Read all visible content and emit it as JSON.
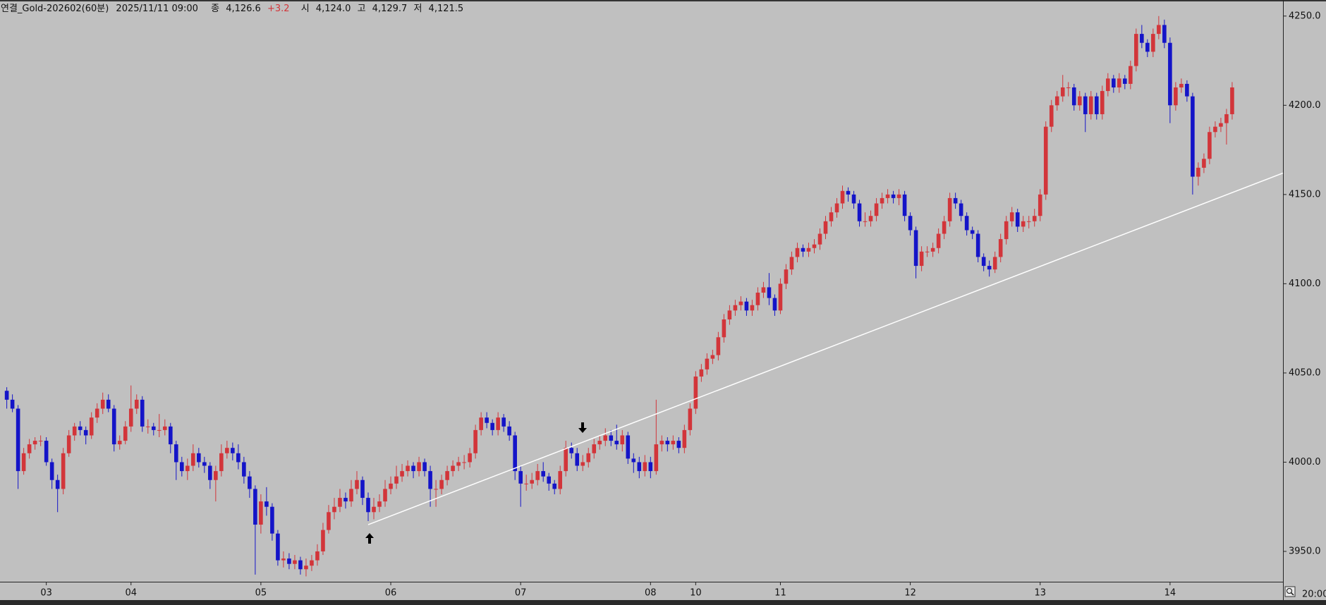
{
  "header": {
    "title": "연결_Gold-202602(60분)",
    "datetime": "2025/11/11 09:00",
    "close_label": "종",
    "close": "4,126.6",
    "change": "+3.2",
    "open_label": "시",
    "open": "4,124.0",
    "high_label": "고",
    "high": "4,129.7",
    "low_label": "저",
    "low": "4,121.5"
  },
  "chart_data": {
    "type": "candlestick",
    "up_color": "#d2353a",
    "down_color": "#1414c8",
    "ylim": [
      3933,
      4259
    ],
    "yticks": [
      {
        "value": 3950,
        "label": "3950.0"
      },
      {
        "value": 4000,
        "label": "4000.0"
      },
      {
        "value": 4050,
        "label": "4050.0"
      },
      {
        "value": 4100,
        "label": "4100.0"
      },
      {
        "value": 4150,
        "label": "4150.0"
      },
      {
        "value": 4200,
        "label": "4200.0"
      },
      {
        "value": 4250,
        "label": "4250.0"
      }
    ],
    "xlim": [
      -1.2,
      226
    ],
    "xticks": [
      {
        "value": 7,
        "label": "03"
      },
      {
        "value": 22,
        "label": "04"
      },
      {
        "value": 45,
        "label": "05"
      },
      {
        "value": 68,
        "label": "06"
      },
      {
        "value": 91,
        "label": "07"
      },
      {
        "value": 114,
        "label": "08"
      },
      {
        "value": 122,
        "label": "10"
      },
      {
        "value": 137,
        "label": "11"
      },
      {
        "value": 160,
        "label": "12"
      },
      {
        "value": 183,
        "label": "13"
      },
      {
        "value": 206,
        "label": "14"
      }
    ],
    "time_label": "20:00",
    "trendline": {
      "color": "#ffffff",
      "start": [
        64,
        3965
      ],
      "end": [
        226,
        4162
      ]
    },
    "candles": [
      [
        4040,
        4042,
        4030,
        4035
      ],
      [
        4035,
        4038,
        4028,
        4030
      ],
      [
        4030,
        4032,
        3985,
        3995
      ],
      [
        3995,
        4008,
        3993,
        4005
      ],
      [
        4005,
        4013,
        4002,
        4010
      ],
      [
        4010,
        4014,
        4007,
        4012
      ],
      [
        4012,
        4015,
        4009,
        4012
      ],
      [
        4012,
        4014,
        3998,
        4000
      ],
      [
        4000,
        4002,
        3985,
        3990
      ],
      [
        3990,
        3993,
        3972,
        3985
      ],
      [
        3985,
        4008,
        3982,
        4005
      ],
      [
        4005,
        4018,
        4003,
        4015
      ],
      [
        4015,
        4022,
        4012,
        4020
      ],
      [
        4020,
        4023,
        4015,
        4018
      ],
      [
        4018,
        4020,
        4010,
        4015
      ],
      [
        4015,
        4028,
        4013,
        4025
      ],
      [
        4025,
        4033,
        4022,
        4030
      ],
      [
        4030,
        4039,
        4027,
        4035
      ],
      [
        4035,
        4038,
        4028,
        4030
      ],
      [
        4030,
        4032,
        4006,
        4010
      ],
      [
        4010,
        4015,
        4007,
        4012
      ],
      [
        4012,
        4023,
        4010,
        4020
      ],
      [
        4020,
        4043,
        4017,
        4030
      ],
      [
        4030,
        4038,
        4027,
        4035
      ],
      [
        4035,
        4037,
        4017,
        4020
      ],
      [
        4020,
        4024,
        4016,
        4020
      ],
      [
        4020,
        4022,
        4015,
        4018
      ],
      [
        4018,
        4027,
        4014,
        4018
      ],
      [
        4018,
        4024,
        4015,
        4020
      ],
      [
        4020,
        4022,
        4005,
        4010
      ],
      [
        4010,
        4012,
        3990,
        4000
      ],
      [
        4000,
        4003,
        3992,
        3995
      ],
      [
        3995,
        4002,
        3990,
        3998
      ],
      [
        3998,
        4010,
        3995,
        4005
      ],
      [
        4005,
        4008,
        3997,
        4000
      ],
      [
        4000,
        4003,
        3994,
        3998
      ],
      [
        3998,
        4000,
        3985,
        3990
      ],
      [
        3990,
        3998,
        3978,
        3995
      ],
      [
        3995,
        4010,
        3992,
        4005
      ],
      [
        4005,
        4012,
        4002,
        4008
      ],
      [
        4008,
        4011,
        4001,
        4005
      ],
      [
        4005,
        4010,
        3996,
        4000
      ],
      [
        4000,
        4003,
        3988,
        3992
      ],
      [
        3992,
        3995,
        3980,
        3985
      ],
      [
        3985,
        3987,
        3937,
        3965
      ],
      [
        3965,
        3982,
        3960,
        3978
      ],
      [
        3978,
        3986,
        3970,
        3975
      ],
      [
        3975,
        3977,
        3956,
        3960
      ],
      [
        3960,
        3962,
        3942,
        3945
      ],
      [
        3945,
        3950,
        3941,
        3946
      ],
      [
        3946,
        3949,
        3940,
        3943
      ],
      [
        3943,
        3948,
        3940,
        3945
      ],
      [
        3945,
        3947,
        3937,
        3940
      ],
      [
        3940,
        3946,
        3936,
        3942
      ],
      [
        3942,
        3948,
        3939,
        3945
      ],
      [
        3945,
        3954,
        3942,
        3950
      ],
      [
        3950,
        3966,
        3948,
        3962
      ],
      [
        3962,
        3976,
        3960,
        3972
      ],
      [
        3972,
        3980,
        3968,
        3975
      ],
      [
        3975,
        3985,
        3972,
        3980
      ],
      [
        3980,
        3983,
        3974,
        3978
      ],
      [
        3978,
        3990,
        3975,
        3985
      ],
      [
        3985,
        3995,
        3982,
        3990
      ],
      [
        3990,
        3992,
        3976,
        3980
      ],
      [
        3980,
        3983,
        3967,
        3972
      ],
      [
        3972,
        3980,
        3968,
        3975
      ],
      [
        3975,
        3982,
        3972,
        3978
      ],
      [
        3978,
        3990,
        3975,
        3985
      ],
      [
        3985,
        3992,
        3982,
        3988
      ],
      [
        3988,
        3998,
        3985,
        3992
      ],
      [
        3992,
        3999,
        3989,
        3995
      ],
      [
        3995,
        4001,
        3992,
        3998
      ],
      [
        3998,
        4000,
        3991,
        3995
      ],
      [
        3995,
        4003,
        3992,
        4000
      ],
      [
        4000,
        4002,
        3992,
        3995
      ],
      [
        3995,
        3998,
        3975,
        3985
      ],
      [
        3985,
        3990,
        3975,
        3985
      ],
      [
        3985,
        3993,
        3982,
        3990
      ],
      [
        3990,
        3998,
        3987,
        3995
      ],
      [
        3995,
        4001,
        3992,
        3998
      ],
      [
        3998,
        4003,
        3995,
        4000
      ],
      [
        4000,
        4004,
        3996,
        4000
      ],
      [
        4000,
        4008,
        3997,
        4005
      ],
      [
        4005,
        4021,
        4002,
        4018
      ],
      [
        4018,
        4028,
        4015,
        4025
      ],
      [
        4025,
        4028,
        4019,
        4022
      ],
      [
        4022,
        4024,
        4015,
        4018
      ],
      [
        4018,
        4028,
        4015,
        4025
      ],
      [
        4025,
        4027,
        4017,
        4020
      ],
      [
        4020,
        4023,
        4012,
        4015
      ],
      [
        4015,
        4017,
        3990,
        3995
      ],
      [
        3995,
        3998,
        3975,
        3988
      ],
      [
        3988,
        3993,
        3984,
        3988
      ],
      [
        3988,
        3994,
        3985,
        3990
      ],
      [
        3990,
        3999,
        3987,
        3995
      ],
      [
        3995,
        4000,
        3989,
        3992
      ],
      [
        3992,
        3994,
        3984,
        3988
      ],
      [
        3988,
        3990,
        3982,
        3985
      ],
      [
        3985,
        3998,
        3982,
        3995
      ],
      [
        3995,
        4012,
        3992,
        4008
      ],
      [
        4008,
        4011,
        4002,
        4005
      ],
      [
        4005,
        4008,
        3995,
        3998
      ],
      [
        3998,
        4004,
        3995,
        4000
      ],
      [
        4000,
        4008,
        3997,
        4005
      ],
      [
        4005,
        4013,
        4002,
        4010
      ],
      [
        4010,
        4015,
        4007,
        4012
      ],
      [
        4012,
        4019,
        4009,
        4015
      ],
      [
        4015,
        4018,
        4009,
        4012
      ],
      [
        4012,
        4021,
        4007,
        4010
      ],
      [
        4010,
        4018,
        4006,
        4015
      ],
      [
        4015,
        4017,
        3999,
        4002
      ],
      [
        4002,
        4005,
        3994,
        4000
      ],
      [
        4000,
        4003,
        3991,
        3995
      ],
      [
        3995,
        4004,
        3992,
        4000
      ],
      [
        4000,
        4003,
        3991,
        3995
      ],
      [
        3995,
        4035,
        3993,
        4010
      ],
      [
        4010,
        4015,
        4006,
        4012
      ],
      [
        4012,
        4014,
        4006,
        4010
      ],
      [
        4010,
        4015,
        4007,
        4012
      ],
      [
        4012,
        4014,
        4005,
        4008
      ],
      [
        4008,
        4021,
        4005,
        4018
      ],
      [
        4018,
        4033,
        4015,
        4030
      ],
      [
        4030,
        4051,
        4027,
        4048
      ],
      [
        4048,
        4055,
        4045,
        4052
      ],
      [
        4052,
        4061,
        4049,
        4058
      ],
      [
        4058,
        4063,
        4055,
        4060
      ],
      [
        4060,
        4073,
        4057,
        4070
      ],
      [
        4070,
        4083,
        4067,
        4080
      ],
      [
        4080,
        4088,
        4077,
        4085
      ],
      [
        4085,
        4091,
        4082,
        4088
      ],
      [
        4088,
        4093,
        4085,
        4090
      ],
      [
        4090,
        4092,
        4082,
        4085
      ],
      [
        4085,
        4091,
        4082,
        4088
      ],
      [
        4088,
        4098,
        4085,
        4095
      ],
      [
        4095,
        4101,
        4092,
        4098
      ],
      [
        4098,
        4106,
        4088,
        4092
      ],
      [
        4092,
        4094,
        4082,
        4085
      ],
      [
        4085,
        4103,
        4083,
        4100
      ],
      [
        4100,
        4111,
        4097,
        4108
      ],
      [
        4108,
        4118,
        4105,
        4115
      ],
      [
        4115,
        4123,
        4112,
        4120
      ],
      [
        4120,
        4122,
        4115,
        4118
      ],
      [
        4118,
        4123,
        4115,
        4120
      ],
      [
        4120,
        4125,
        4117,
        4122
      ],
      [
        4122,
        4131,
        4119,
        4128
      ],
      [
        4128,
        4138,
        4125,
        4135
      ],
      [
        4135,
        4143,
        4132,
        4140
      ],
      [
        4140,
        4148,
        4137,
        4145
      ],
      [
        4145,
        4155,
        4142,
        4152
      ],
      [
        4152,
        4154,
        4146,
        4150
      ],
      [
        4150,
        4152,
        4142,
        4145
      ],
      [
        4145,
        4147,
        4132,
        4135
      ],
      [
        4135,
        4140,
        4132,
        4135
      ],
      [
        4135,
        4141,
        4132,
        4138
      ],
      [
        4138,
        4148,
        4135,
        4145
      ],
      [
        4145,
        4151,
        4142,
        4148
      ],
      [
        4148,
        4153,
        4145,
        4150
      ],
      [
        4150,
        4152,
        4145,
        4148
      ],
      [
        4148,
        4153,
        4144,
        4150
      ],
      [
        4150,
        4152,
        4135,
        4138
      ],
      [
        4138,
        4140,
        4127,
        4130
      ],
      [
        4130,
        4132,
        4103,
        4110
      ],
      [
        4110,
        4121,
        4107,
        4118
      ],
      [
        4118,
        4121,
        4115,
        4118
      ],
      [
        4118,
        4123,
        4115,
        4120
      ],
      [
        4120,
        4131,
        4117,
        4128
      ],
      [
        4128,
        4138,
        4125,
        4135
      ],
      [
        4135,
        4151,
        4132,
        4148
      ],
      [
        4148,
        4151,
        4142,
        4145
      ],
      [
        4145,
        4147,
        4135,
        4138
      ],
      [
        4138,
        4140,
        4127,
        4130
      ],
      [
        4130,
        4132,
        4125,
        4128
      ],
      [
        4128,
        4130,
        4112,
        4115
      ],
      [
        4115,
        4117,
        4107,
        4110
      ],
      [
        4110,
        4113,
        4104,
        4108
      ],
      [
        4108,
        4118,
        4106,
        4115
      ],
      [
        4115,
        4128,
        4112,
        4125
      ],
      [
        4125,
        4138,
        4122,
        4135
      ],
      [
        4135,
        4143,
        4132,
        4140
      ],
      [
        4140,
        4142,
        4129,
        4132
      ],
      [
        4132,
        4138,
        4129,
        4135
      ],
      [
        4135,
        4138,
        4131,
        4135
      ],
      [
        4135,
        4142,
        4132,
        4138
      ],
      [
        4138,
        4153,
        4135,
        4150
      ],
      [
        4150,
        4191,
        4147,
        4188
      ],
      [
        4188,
        4203,
        4185,
        4200
      ],
      [
        4200,
        4208,
        4197,
        4205
      ],
      [
        4205,
        4217,
        4202,
        4210
      ],
      [
        4210,
        4213,
        4205,
        4210
      ],
      [
        4210,
        4212,
        4197,
        4200
      ],
      [
        4200,
        4208,
        4197,
        4205
      ],
      [
        4205,
        4207,
        4185,
        4195
      ],
      [
        4195,
        4208,
        4192,
        4205
      ],
      [
        4205,
        4207,
        4192,
        4195
      ],
      [
        4195,
        4211,
        4192,
        4208
      ],
      [
        4208,
        4218,
        4205,
        4215
      ],
      [
        4215,
        4217,
        4207,
        4210
      ],
      [
        4210,
        4218,
        4207,
        4215
      ],
      [
        4215,
        4217,
        4209,
        4212
      ],
      [
        4212,
        4225,
        4209,
        4222
      ],
      [
        4222,
        4243,
        4219,
        4240
      ],
      [
        4240,
        4245,
        4232,
        4235
      ],
      [
        4235,
        4237,
        4227,
        4230
      ],
      [
        4230,
        4243,
        4227,
        4240
      ],
      [
        4240,
        4250,
        4237,
        4245
      ],
      [
        4245,
        4248,
        4232,
        4235
      ],
      [
        4235,
        4238,
        4190,
        4200
      ],
      [
        4200,
        4213,
        4197,
        4210
      ],
      [
        4210,
        4215,
        4207,
        4212
      ],
      [
        4212,
        4214,
        4202,
        4205
      ],
      [
        4205,
        4207,
        4150,
        4160
      ],
      [
        4160,
        4168,
        4155,
        4165
      ],
      [
        4165,
        4173,
        4162,
        4170
      ],
      [
        4170,
        4188,
        4167,
        4185
      ],
      [
        4185,
        4191,
        4182,
        4188
      ],
      [
        4188,
        4193,
        4185,
        4190
      ],
      [
        4190,
        4198,
        4178,
        4195
      ],
      [
        4195,
        4213,
        4192,
        4210
      ]
    ]
  }
}
